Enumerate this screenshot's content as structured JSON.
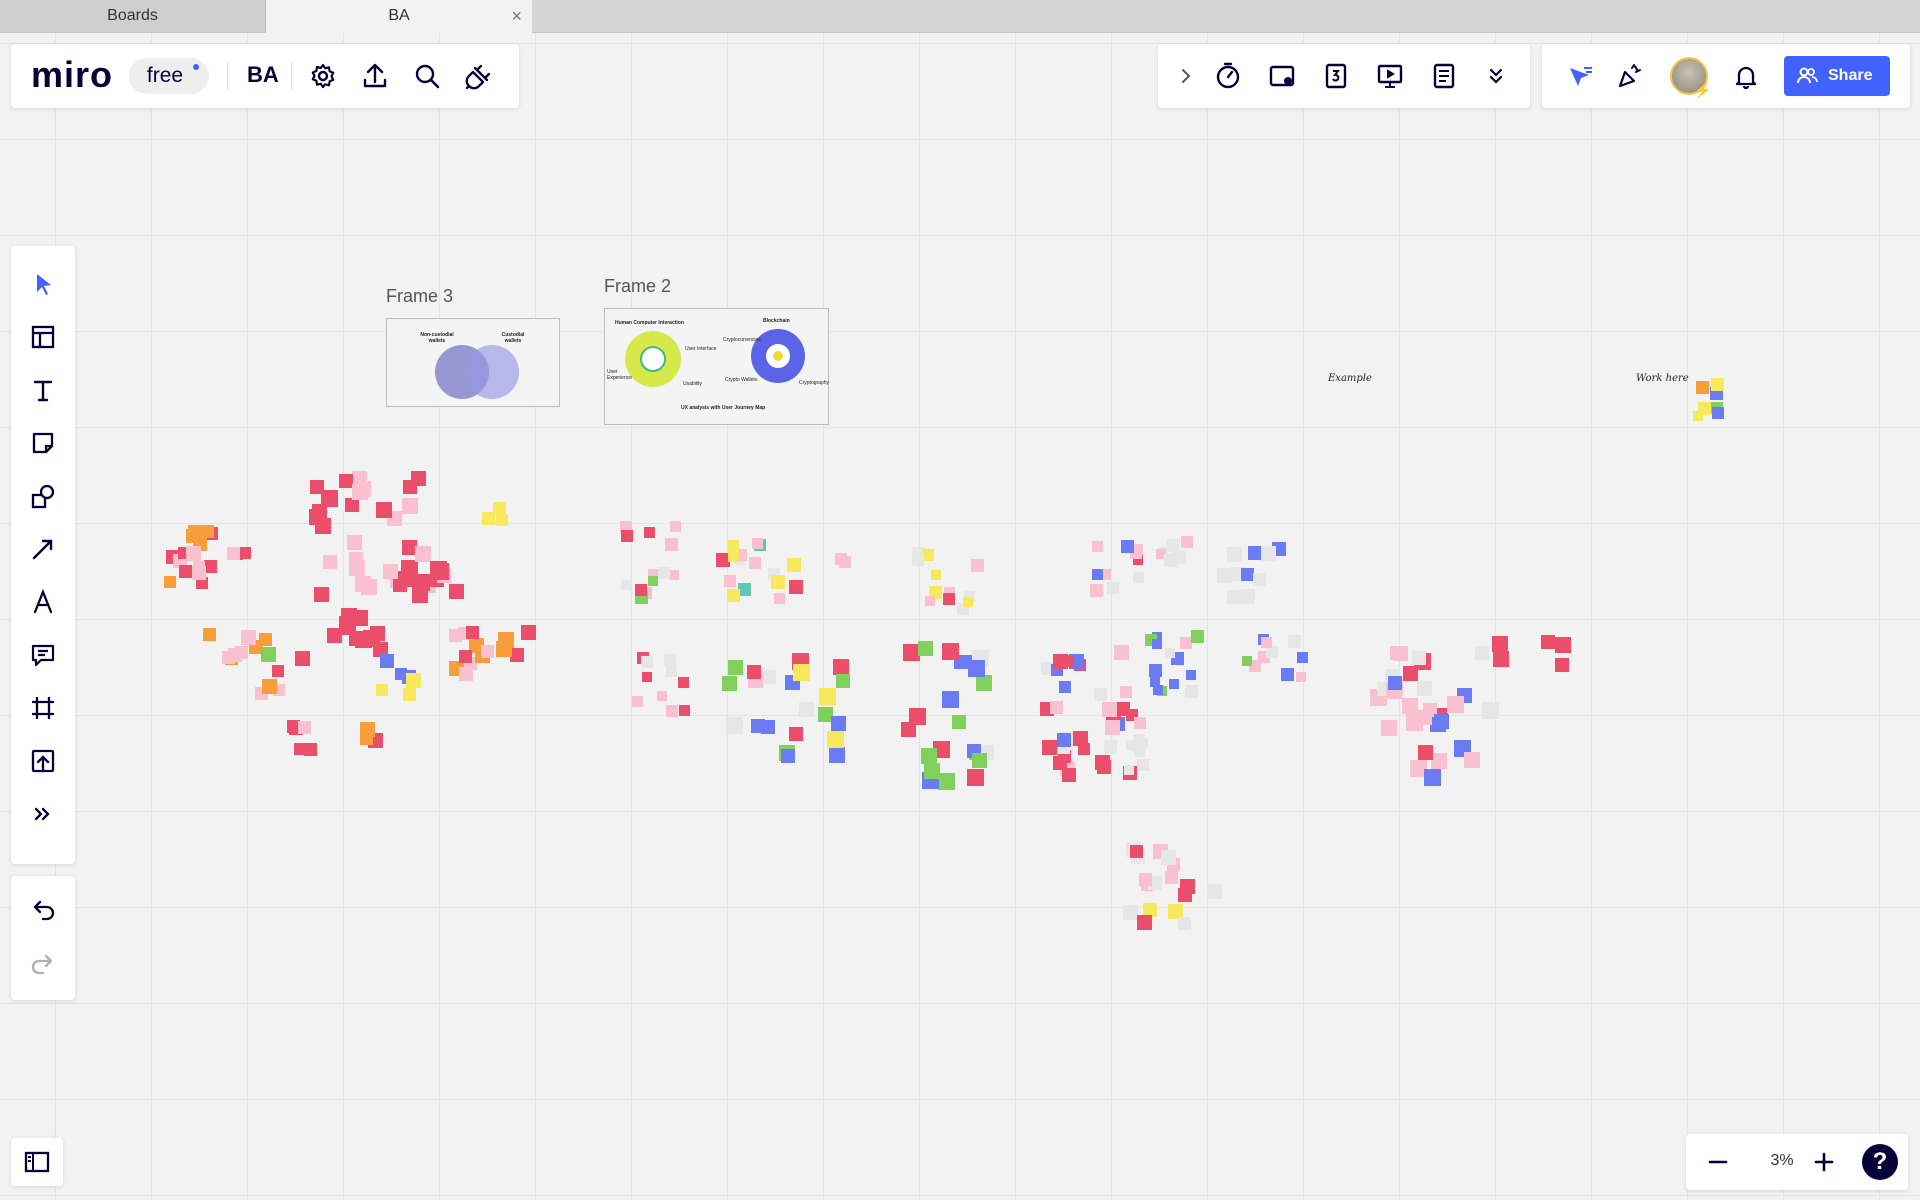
{
  "browser": {
    "tabs": [
      {
        "label": "Boards"
      },
      {
        "label": "BA"
      }
    ]
  },
  "header": {
    "logo": "miro",
    "plan": "free",
    "board_name": "BA",
    "share_label": "Share"
  },
  "zoom": {
    "level": "3%",
    "help": "?"
  },
  "board": {
    "frames": [
      {
        "title": "Frame 3"
      },
      {
        "title": "Frame 2"
      }
    ],
    "frame3": {
      "left_title": "Non-custodial wallets",
      "right_title": "Custodial wallets"
    },
    "frame2": {
      "left_title": "Human Computer Interaction",
      "right_title": "Blockchain",
      "labels": [
        "User Interface",
        "User Experience",
        "Usability",
        "Cryptocurrencies",
        "Crypto Wallets",
        "Cryptography",
        "UX analysis with User Journey Map"
      ]
    },
    "labels": {
      "example": "Example",
      "work_here": "Work here"
    }
  },
  "colors": {
    "accent": "#4262ff",
    "sticky_red": "#ea4e6a",
    "sticky_pink": "#f9c0cf",
    "sticky_blue": "#6b7cf2",
    "sticky_green": "#7fd15c",
    "sticky_yellow": "#f7e95b",
    "sticky_orange": "#f79e3a"
  }
}
